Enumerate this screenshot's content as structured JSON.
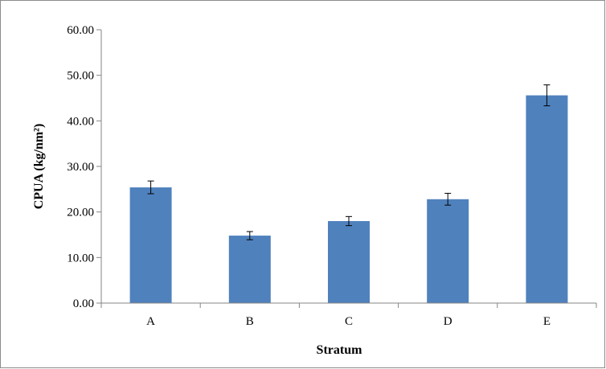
{
  "chart_data": {
    "type": "bar",
    "title": "",
    "xlabel": "Stratum",
    "ylabel": "CPUA (kg/nm²)",
    "categories": [
      "A",
      "B",
      "C",
      "D",
      "E"
    ],
    "values": [
      25.4,
      14.8,
      18.0,
      22.8,
      45.6
    ],
    "error": [
      1.4,
      0.9,
      1.0,
      1.3,
      2.3
    ],
    "ylim": [
      0,
      60
    ],
    "yticks": [
      0,
      10,
      20,
      30,
      40,
      50,
      60
    ],
    "ytick_labels": [
      "0.00",
      "10.00",
      "20.00",
      "30.00",
      "40.00",
      "50.00",
      "60.00"
    ],
    "grid": false,
    "legend": "none",
    "bar_color": "#4f81bd"
  }
}
